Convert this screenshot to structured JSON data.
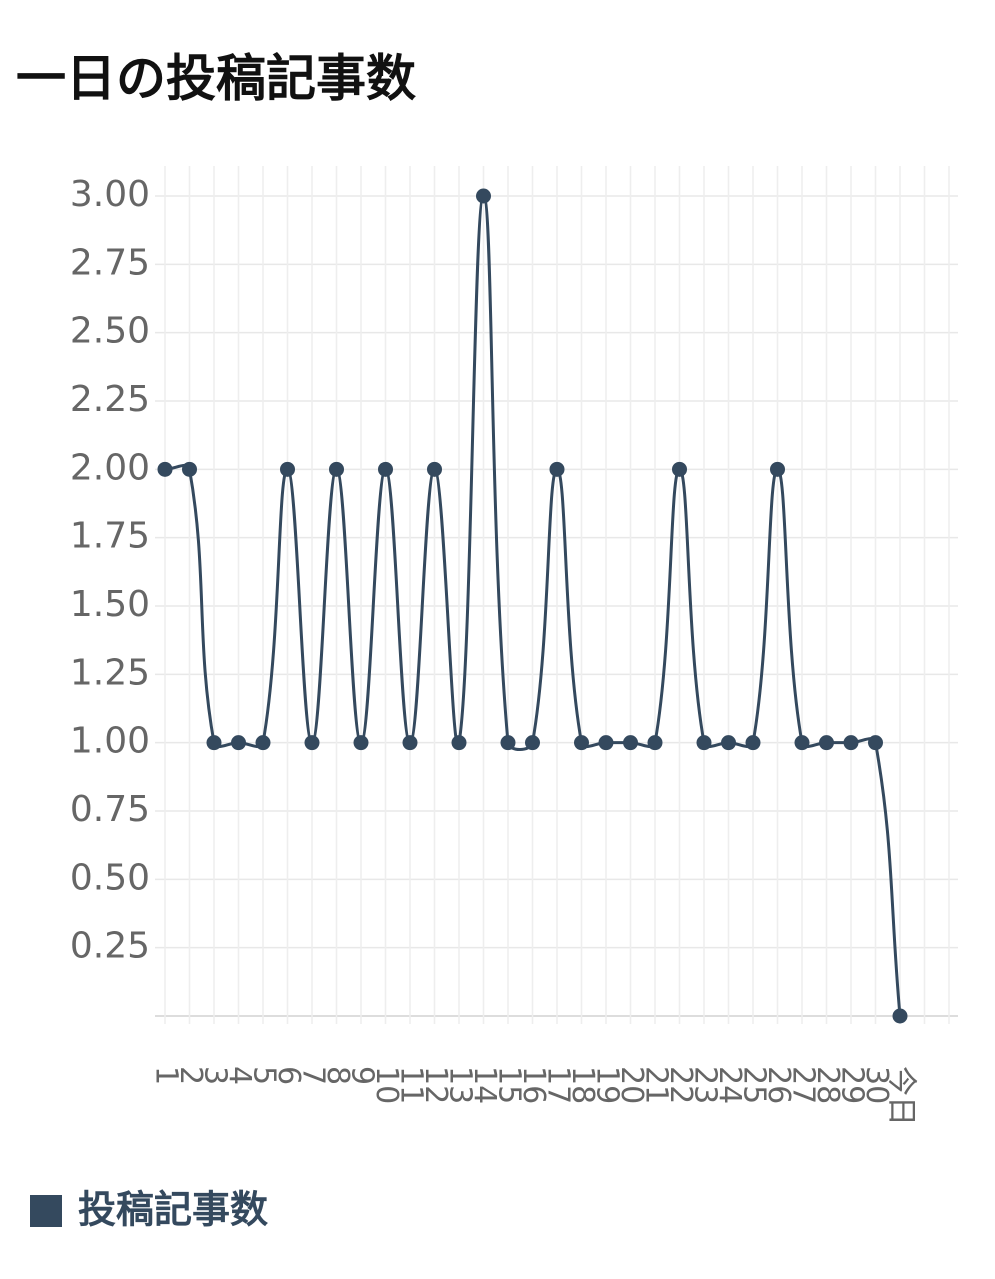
{
  "chart_data": {
    "type": "line",
    "title": "一日の投稿記事数",
    "categories": [
      "1",
      "2",
      "3",
      "4",
      "5",
      "6",
      "7",
      "8",
      "9",
      "10",
      "11",
      "12",
      "13",
      "14",
      "15",
      "16",
      "17",
      "18",
      "19",
      "20",
      "21",
      "22",
      "23",
      "24",
      "25",
      "26",
      "27",
      "28",
      "29",
      "30",
      "今日"
    ],
    "series": [
      {
        "name": "投稿記事数",
        "color": "#34495e",
        "values": [
          2,
          2,
          1,
          1,
          1,
          2,
          1,
          2,
          1,
          2,
          1,
          2,
          1,
          3,
          1,
          1,
          2,
          1,
          1,
          1,
          1,
          2,
          1,
          1,
          1,
          2,
          1,
          1,
          1,
          1,
          0
        ]
      }
    ],
    "ylim": [
      0,
      3
    ],
    "yticks": [
      {
        "value": 0.25,
        "label": "0.25"
      },
      {
        "value": 0.5,
        "label": "0.50"
      },
      {
        "value": 0.75,
        "label": "0.75"
      },
      {
        "value": 1,
        "label": "1.00"
      },
      {
        "value": 1.25,
        "label": "1.25"
      },
      {
        "value": 1.5,
        "label": "1.50"
      },
      {
        "value": 1.75,
        "label": "1.75"
      },
      {
        "value": 2,
        "label": "2.00"
      },
      {
        "value": 2.25,
        "label": "2.25"
      },
      {
        "value": 2.5,
        "label": "2.50"
      },
      {
        "value": 2.75,
        "label": "2.75"
      },
      {
        "value": 3,
        "label": "3.00"
      }
    ],
    "grid": true
  }
}
